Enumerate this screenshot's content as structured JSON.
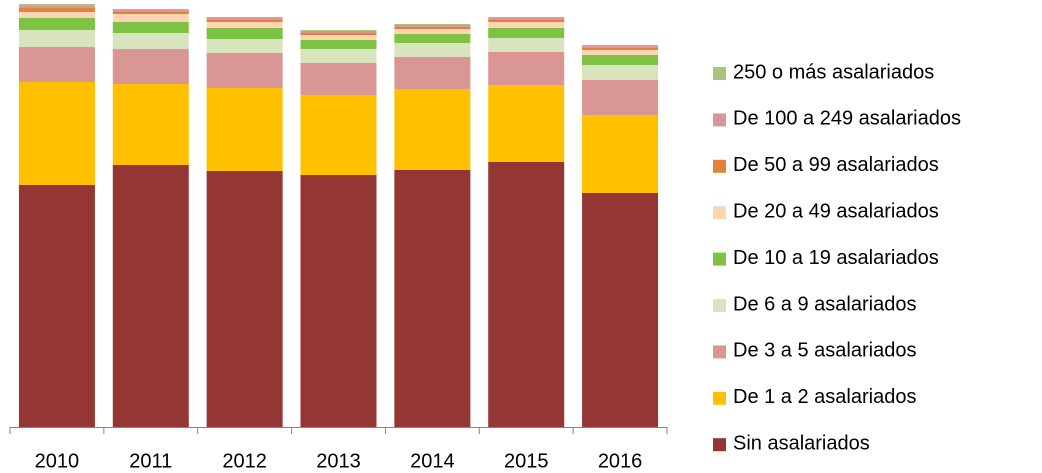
{
  "chart_data": {
    "type": "bar",
    "stacked": true,
    "categories": [
      "2010",
      "2011",
      "2012",
      "2013",
      "2014",
      "2015",
      "2016"
    ],
    "series": [
      {
        "name": "Sin asalariados",
        "color": "#943634",
        "values": [
          242,
          262,
          256,
          252,
          257,
          265,
          234
        ]
      },
      {
        "name": "De 1 a 2 asalariados",
        "color": "#ffc000",
        "values": [
          103,
          81,
          83,
          80,
          81,
          77,
          78
        ]
      },
      {
        "name": "De 3 a 5 asalariados",
        "color": "#d99694",
        "values": [
          35,
          35,
          35,
          32,
          32,
          33,
          35
        ]
      },
      {
        "name": "De 6 a 9 asalariados",
        "color": "#d7e4bd",
        "values": [
          17,
          16,
          14,
          14,
          14,
          14,
          15
        ]
      },
      {
        "name": "De 10 a 19 asalariados",
        "color": "#7dc242",
        "values": [
          12,
          11,
          11,
          9,
          9,
          10,
          10
        ]
      },
      {
        "name": "De 20 a 49 asalariados",
        "color": "#fcd5b5",
        "values": [
          6,
          8,
          6,
          5,
          5,
          6,
          5
        ]
      },
      {
        "name": "De 50 a 99 asalariados",
        "color": "#e0823b",
        "values": [
          4,
          2,
          2,
          2,
          2,
          2,
          2
        ]
      },
      {
        "name": "De 100 a 249 asalariados",
        "color": "#d99694",
        "values": [
          2,
          2,
          2,
          2,
          2,
          2,
          2
        ]
      },
      {
        "name": "250 o más asalariados",
        "color": "#a9c47f",
        "values": [
          2,
          1,
          1,
          1,
          1,
          1,
          1
        ]
      }
    ]
  }
}
